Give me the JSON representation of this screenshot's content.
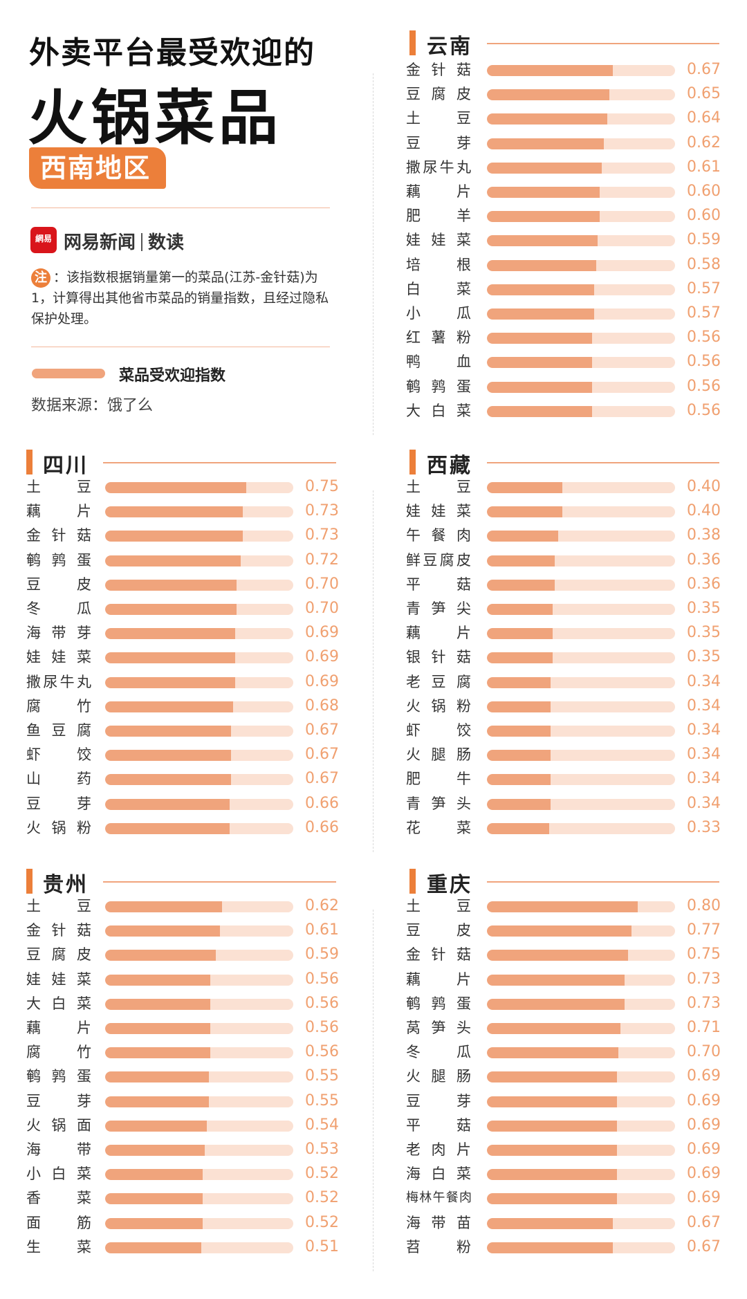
{
  "header": {
    "title_line1": "外卖平台最受欢迎的",
    "title_line2": "火锅菜品",
    "region_tag": "西南地区",
    "logo_text": "網易",
    "brand": "网易新闻",
    "brand_sub": "数读",
    "note_badge": "注",
    "note": "：该指数根据销量第一的菜品(江苏-金针菇)为1，计算得出其他省市菜品的销量指数，且经过隐私保护处理。",
    "legend": "菜品受欢迎指数",
    "source": "数据来源：饿了么"
  },
  "colors": {
    "accent": "#ec7f3a",
    "bar_fill": "#f0a47c",
    "bar_track": "#fbe1d3",
    "value_text": "#f0a070"
  },
  "chart_data": [
    {
      "type": "bar",
      "orientation": "horizontal",
      "title": "云南",
      "xlim": [
        0,
        1
      ],
      "categories": [
        "金针菇",
        "豆腐皮",
        "土豆",
        "豆芽",
        "撒尿牛丸",
        "藕片",
        "肥羊",
        "娃娃菜",
        "培根",
        "白菜",
        "小瓜",
        "红薯粉",
        "鸭血",
        "鹌鹑蛋",
        "大白菜"
      ],
      "values": [
        0.67,
        0.65,
        0.64,
        0.62,
        0.61,
        0.6,
        0.6,
        0.59,
        0.58,
        0.57,
        0.57,
        0.56,
        0.56,
        0.56,
        0.56
      ],
      "labels": [
        "0.67",
        "0.65",
        "0.64",
        "0.62",
        "0.61",
        "0.60",
        "0.60",
        "0.59",
        "0.58",
        "0.57",
        "0.57",
        "0.56",
        "0.56",
        "0.56",
        "0.56"
      ]
    },
    {
      "type": "bar",
      "orientation": "horizontal",
      "title": "四川",
      "xlim": [
        0,
        1
      ],
      "categories": [
        "土豆",
        "藕片",
        "金针菇",
        "鹌鹑蛋",
        "豆皮",
        "冬瓜",
        "海带芽",
        "娃娃菜",
        "撒尿牛丸",
        "腐竹",
        "鱼豆腐",
        "虾饺",
        "山药",
        "豆芽",
        "火锅粉"
      ],
      "values": [
        0.75,
        0.73,
        0.73,
        0.72,
        0.7,
        0.7,
        0.69,
        0.69,
        0.69,
        0.68,
        0.67,
        0.67,
        0.67,
        0.66,
        0.66
      ],
      "labels": [
        "0.75",
        "0.73",
        "0.73",
        "0.72",
        "0.70",
        "0.70",
        "0.69",
        "0.69",
        "0.69",
        "0.68",
        "0.67",
        "0.67",
        "0.67",
        "0.66",
        "0.66"
      ]
    },
    {
      "type": "bar",
      "orientation": "horizontal",
      "title": "西藏",
      "xlim": [
        0,
        1
      ],
      "categories": [
        "土豆",
        "娃娃菜",
        "午餐肉",
        "鲜豆腐皮",
        "平菇",
        "青笋尖",
        "藕片",
        "银针菇",
        "老豆腐",
        "火锅粉",
        "虾饺",
        "火腿肠",
        "肥牛",
        "青笋头",
        "花菜"
      ],
      "values": [
        0.4,
        0.4,
        0.38,
        0.36,
        0.36,
        0.35,
        0.35,
        0.35,
        0.34,
        0.34,
        0.34,
        0.34,
        0.34,
        0.34,
        0.33
      ],
      "labels": [
        "0.40",
        "0.40",
        "0.38",
        "0.36",
        "0.36",
        "0.35",
        "0.35",
        "0.35",
        "0.34",
        "0.34",
        "0.34",
        "0.34",
        "0.34",
        "0.34",
        "0.33"
      ]
    },
    {
      "type": "bar",
      "orientation": "horizontal",
      "title": "贵州",
      "xlim": [
        0,
        1
      ],
      "categories": [
        "土豆",
        "金针菇",
        "豆腐皮",
        "娃娃菜",
        "大白菜",
        "藕片",
        "腐竹",
        "鹌鹑蛋",
        "豆芽",
        "火锅面",
        "海带",
        "小白菜",
        "香菜",
        "面筋",
        "生菜"
      ],
      "values": [
        0.62,
        0.61,
        0.59,
        0.56,
        0.56,
        0.56,
        0.56,
        0.55,
        0.55,
        0.54,
        0.53,
        0.52,
        0.52,
        0.52,
        0.51
      ],
      "labels": [
        "0.62",
        "0.61",
        "0.59",
        "0.56",
        "0.56",
        "0.56",
        "0.56",
        "0.55",
        "0.55",
        "0.54",
        "0.53",
        "0.52",
        "0.52",
        "0.52",
        "0.51"
      ]
    },
    {
      "type": "bar",
      "orientation": "horizontal",
      "title": "重庆",
      "xlim": [
        0,
        1
      ],
      "categories": [
        "土豆",
        "豆皮",
        "金针菇",
        "藕片",
        "鹌鹑蛋",
        "莴笋头",
        "冬瓜",
        "火腿肠",
        "豆芽",
        "平菇",
        "老肉片",
        "海白菜",
        "梅林午餐肉",
        "海带苗",
        "苕粉"
      ],
      "values": [
        0.8,
        0.77,
        0.75,
        0.73,
        0.73,
        0.71,
        0.7,
        0.69,
        0.69,
        0.69,
        0.69,
        0.69,
        0.69,
        0.67,
        0.67
      ],
      "labels": [
        "0.80",
        "0.77",
        "0.75",
        "0.73",
        "0.73",
        "0.71",
        "0.70",
        "0.69",
        "0.69",
        "0.69",
        "0.69",
        "0.69",
        "0.69",
        "0.67",
        "0.67"
      ]
    }
  ]
}
